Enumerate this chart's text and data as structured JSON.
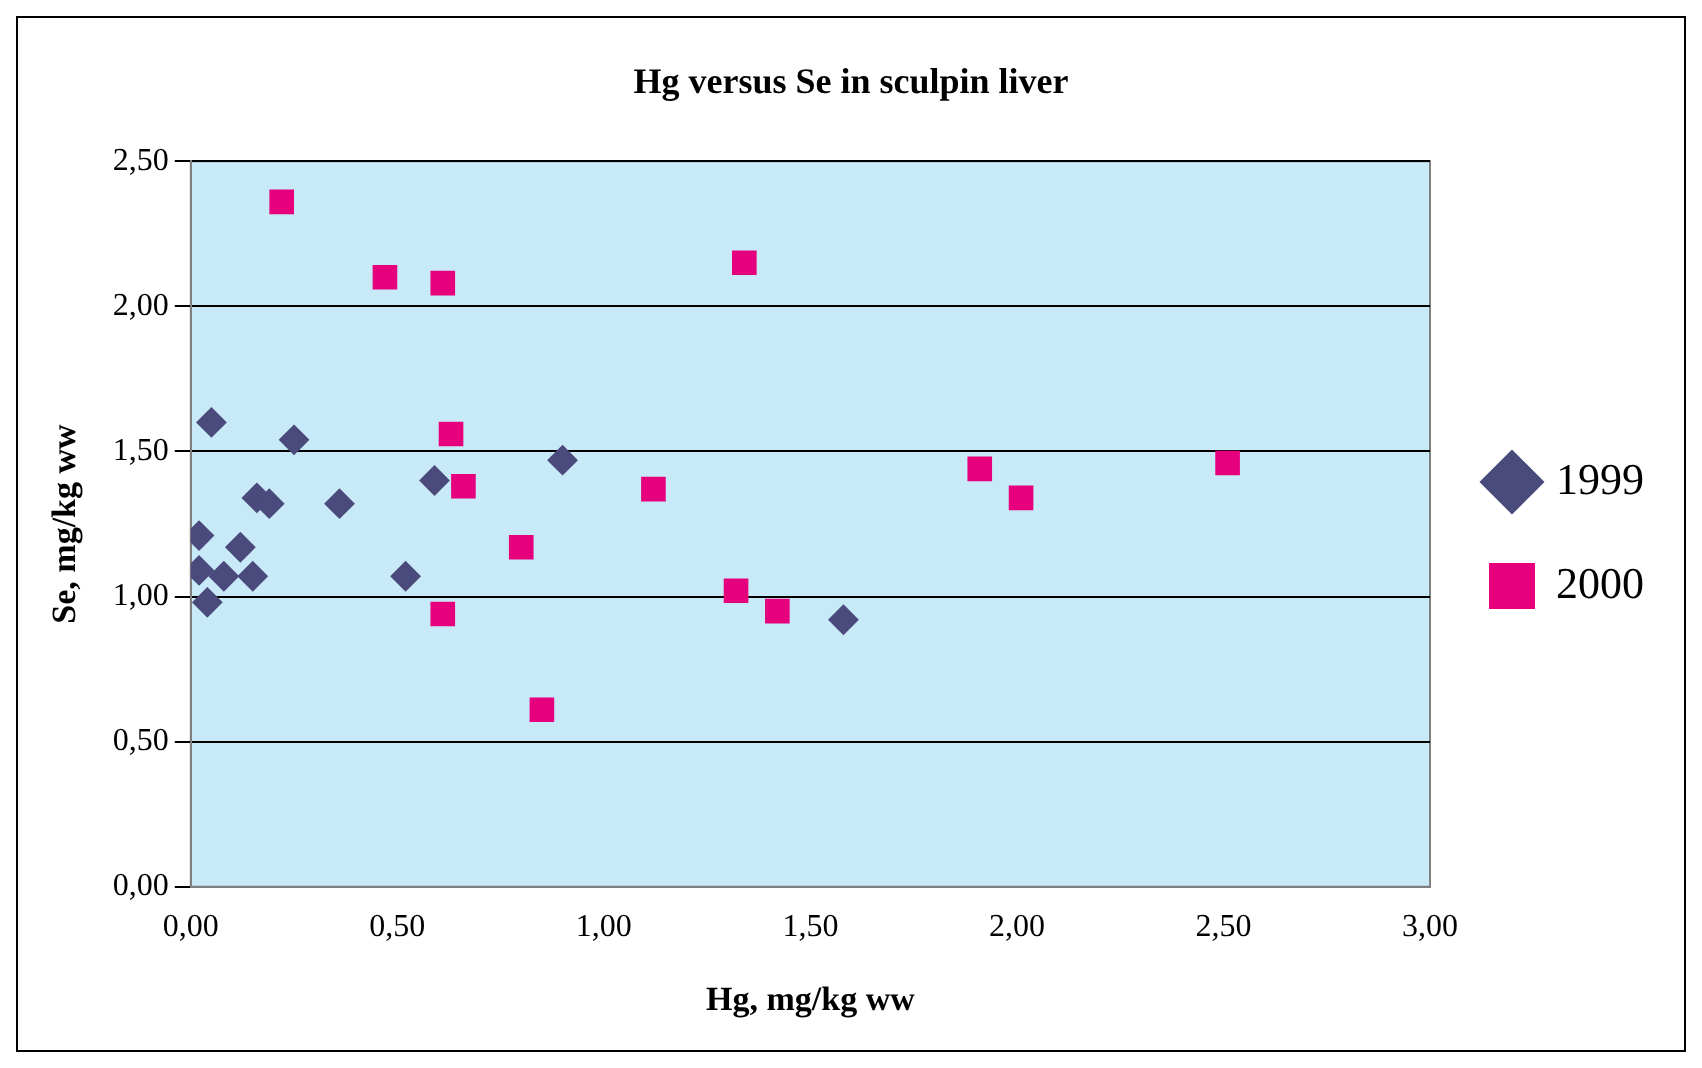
{
  "chart_data": {
    "type": "scatter",
    "title": "Hg versus Se in sculpin liver",
    "xlabel": "Hg, mg/kg ww",
    "ylabel": "Se, mg/kg ww",
    "xlim": [
      0,
      3
    ],
    "xticks": [
      {
        "value": 0,
        "label": "0,00"
      },
      {
        "value": 0.5,
        "label": "0,50"
      },
      {
        "value": 1,
        "label": "1,00"
      },
      {
        "value": 1.5,
        "label": "1,50"
      },
      {
        "value": 2,
        "label": "2,00"
      },
      {
        "value": 2.5,
        "label": "2,50"
      },
      {
        "value": 3,
        "label": "3,00"
      }
    ],
    "ylim": [
      0,
      2.5
    ],
    "yticks": [
      {
        "value": 0,
        "label": "0,00"
      },
      {
        "value": 0.5,
        "label": "0,50"
      },
      {
        "value": 1,
        "label": "1,00"
      },
      {
        "value": 1.5,
        "label": "1,50"
      },
      {
        "value": 2,
        "label": "2,00"
      },
      {
        "value": 2.5,
        "label": "2,50"
      }
    ],
    "grid": "y",
    "legend": "right",
    "series": [
      {
        "name": "1999",
        "color": "#4b4a7c",
        "marker": "diamond",
        "x": [
          0.02,
          0.02,
          0.04,
          0.05,
          0.08,
          0.12,
          0.15,
          0.16,
          0.19,
          0.25,
          0.36,
          0.52,
          0.59,
          0.9,
          1.58
        ],
        "values": [
          1.21,
          1.09,
          0.98,
          1.6,
          1.07,
          1.17,
          1.07,
          1.34,
          1.32,
          1.54,
          1.32,
          1.07,
          1.4,
          1.47,
          0.92
        ]
      },
      {
        "name": "2000",
        "color": "#e6007e",
        "marker": "square",
        "x": [
          0.22,
          0.47,
          0.61,
          0.63,
          0.66,
          0.61,
          0.8,
          0.85,
          1.12,
          1.34,
          1.32,
          1.42,
          1.91,
          2.01,
          2.51
        ],
        "values": [
          2.36,
          2.1,
          2.08,
          1.56,
          1.38,
          0.94,
          1.17,
          0.61,
          1.37,
          2.15,
          1.02,
          0.95,
          1.44,
          1.34,
          1.46
        ]
      }
    ]
  }
}
